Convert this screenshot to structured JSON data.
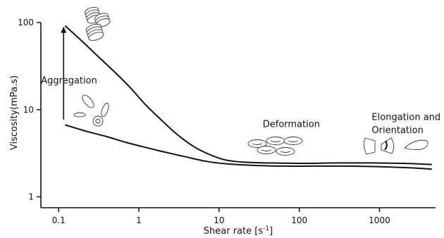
{
  "chart_data": {
    "type": "line",
    "xlabel": "Shear rate [s",
    "xlabel_sup": "-1",
    "xlabel_close": "]",
    "ylabel": "Viscosity(mPa.s)",
    "xscale": "log",
    "yscale": "log",
    "xlim": [
      0.06,
      5000
    ],
    "ylim": [
      0.75,
      100
    ],
    "x_ticks": [
      0.1,
      1,
      10,
      100,
      1000
    ],
    "x_tick_labels": [
      "0.1",
      "1",
      "10",
      "100",
      "1000"
    ],
    "y_ticks": [
      1,
      10,
      100
    ],
    "y_tick_labels": [
      "1",
      "10",
      "100"
    ],
    "grid": false,
    "series": [
      {
        "x": [
          0.12,
          0.2,
          0.3,
          0.5,
          0.8,
          1.2,
          2,
          3,
          5,
          8,
          12,
          20,
          40,
          100,
          300,
          800,
          2000,
          4500
        ],
        "y": [
          92,
          60,
          42,
          27,
          17.5,
          11.5,
          7.3,
          5.2,
          3.7,
          3.0,
          2.65,
          2.5,
          2.45,
          2.42,
          2.45,
          2.45,
          2.42,
          2.35
        ]
      },
      {
        "x": [
          0.12,
          0.2,
          0.4,
          0.7,
          1.2,
          2,
          4,
          7,
          12,
          25,
          60,
          150,
          400,
          1000,
          2500,
          4500
        ],
        "y": [
          6.7,
          5.8,
          4.9,
          4.2,
          3.7,
          3.3,
          2.85,
          2.55,
          2.4,
          2.3,
          2.25,
          2.25,
          2.25,
          2.22,
          2.15,
          2.08
        ]
      }
    ],
    "arrow": {
      "x": 0.12,
      "y_from": 7.7,
      "y_to": 90
    },
    "annotations": [
      {
        "text": "Aggregation",
        "x": 0.12,
        "y": 20
      },
      {
        "text": "Deformation",
        "x": 35,
        "y": 6.3
      },
      {
        "text": "Elongation and",
        "x": 800,
        "y": 7.6
      },
      {
        "text": "Orientation",
        "x": 800,
        "y": 5.4
      }
    ]
  }
}
